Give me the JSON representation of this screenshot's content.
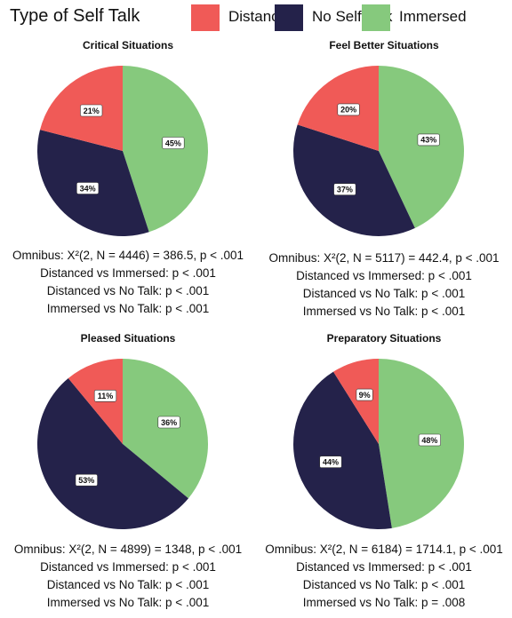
{
  "legend": {
    "title": "Type of Self Talk",
    "items": [
      {
        "label": "Distanced",
        "color": "#f05a57"
      },
      {
        "label": "No Self Talk",
        "color": "#24224a"
      },
      {
        "label": "Immersed",
        "color": "#86c97d"
      }
    ]
  },
  "chart_data": [
    {
      "type": "pie",
      "title": "Critical Situations",
      "slices": [
        {
          "label": "Immersed",
          "value": 45,
          "display": "45%"
        },
        {
          "label": "No Self Talk",
          "value": 34,
          "display": "34%"
        },
        {
          "label": "Distanced",
          "value": 21,
          "display": "21%"
        }
      ],
      "stats": [
        "Omnibus: X²(2, N = 4446) = 386.5, p < .001",
        "Distanced vs Immersed: p < .001",
        "Distanced vs No Talk: p < .001",
        "Immersed vs No Talk: p < .001"
      ]
    },
    {
      "type": "pie",
      "title": "Feel Better Situations",
      "slices": [
        {
          "label": "Immersed",
          "value": 43,
          "display": "43%"
        },
        {
          "label": "No Self Talk",
          "value": 37,
          "display": "37%"
        },
        {
          "label": "Distanced",
          "value": 20,
          "display": "20%"
        }
      ],
      "stats": [
        "Omnibus: X²(2, N = 5117) = 442.4, p < .001",
        "Distanced vs Immersed: p < .001",
        "Distanced vs No Talk: p < .001",
        "Immersed vs No Talk: p < .001"
      ]
    },
    {
      "type": "pie",
      "title": "Pleased Situations",
      "slices": [
        {
          "label": "Immersed",
          "value": 36,
          "display": "36%"
        },
        {
          "label": "No Self Talk",
          "value": 53,
          "display": "53%"
        },
        {
          "label": "Distanced",
          "value": 11,
          "display": "11%"
        }
      ],
      "stats": [
        "Omnibus: X²(2, N = 4899) = 1348, p < .001",
        "Distanced vs Immersed: p < .001",
        "Distanced vs No Talk: p < .001",
        "Immersed vs No Talk: p < .001"
      ]
    },
    {
      "type": "pie",
      "title": "Preparatory Situations",
      "slices": [
        {
          "label": "Immersed",
          "value": 48,
          "display": "48%"
        },
        {
          "label": "No Self Talk",
          "value": 44,
          "display": "44%"
        },
        {
          "label": "Distanced",
          "value": 9,
          "display": "9%"
        }
      ],
      "stats": [
        "Omnibus: X²(2, N = 6184) = 1714.1, p < .001",
        "Distanced vs Immersed: p < .001",
        "Distanced vs No Talk: p < .001",
        "Immersed vs No Talk: p = .008"
      ]
    }
  ]
}
